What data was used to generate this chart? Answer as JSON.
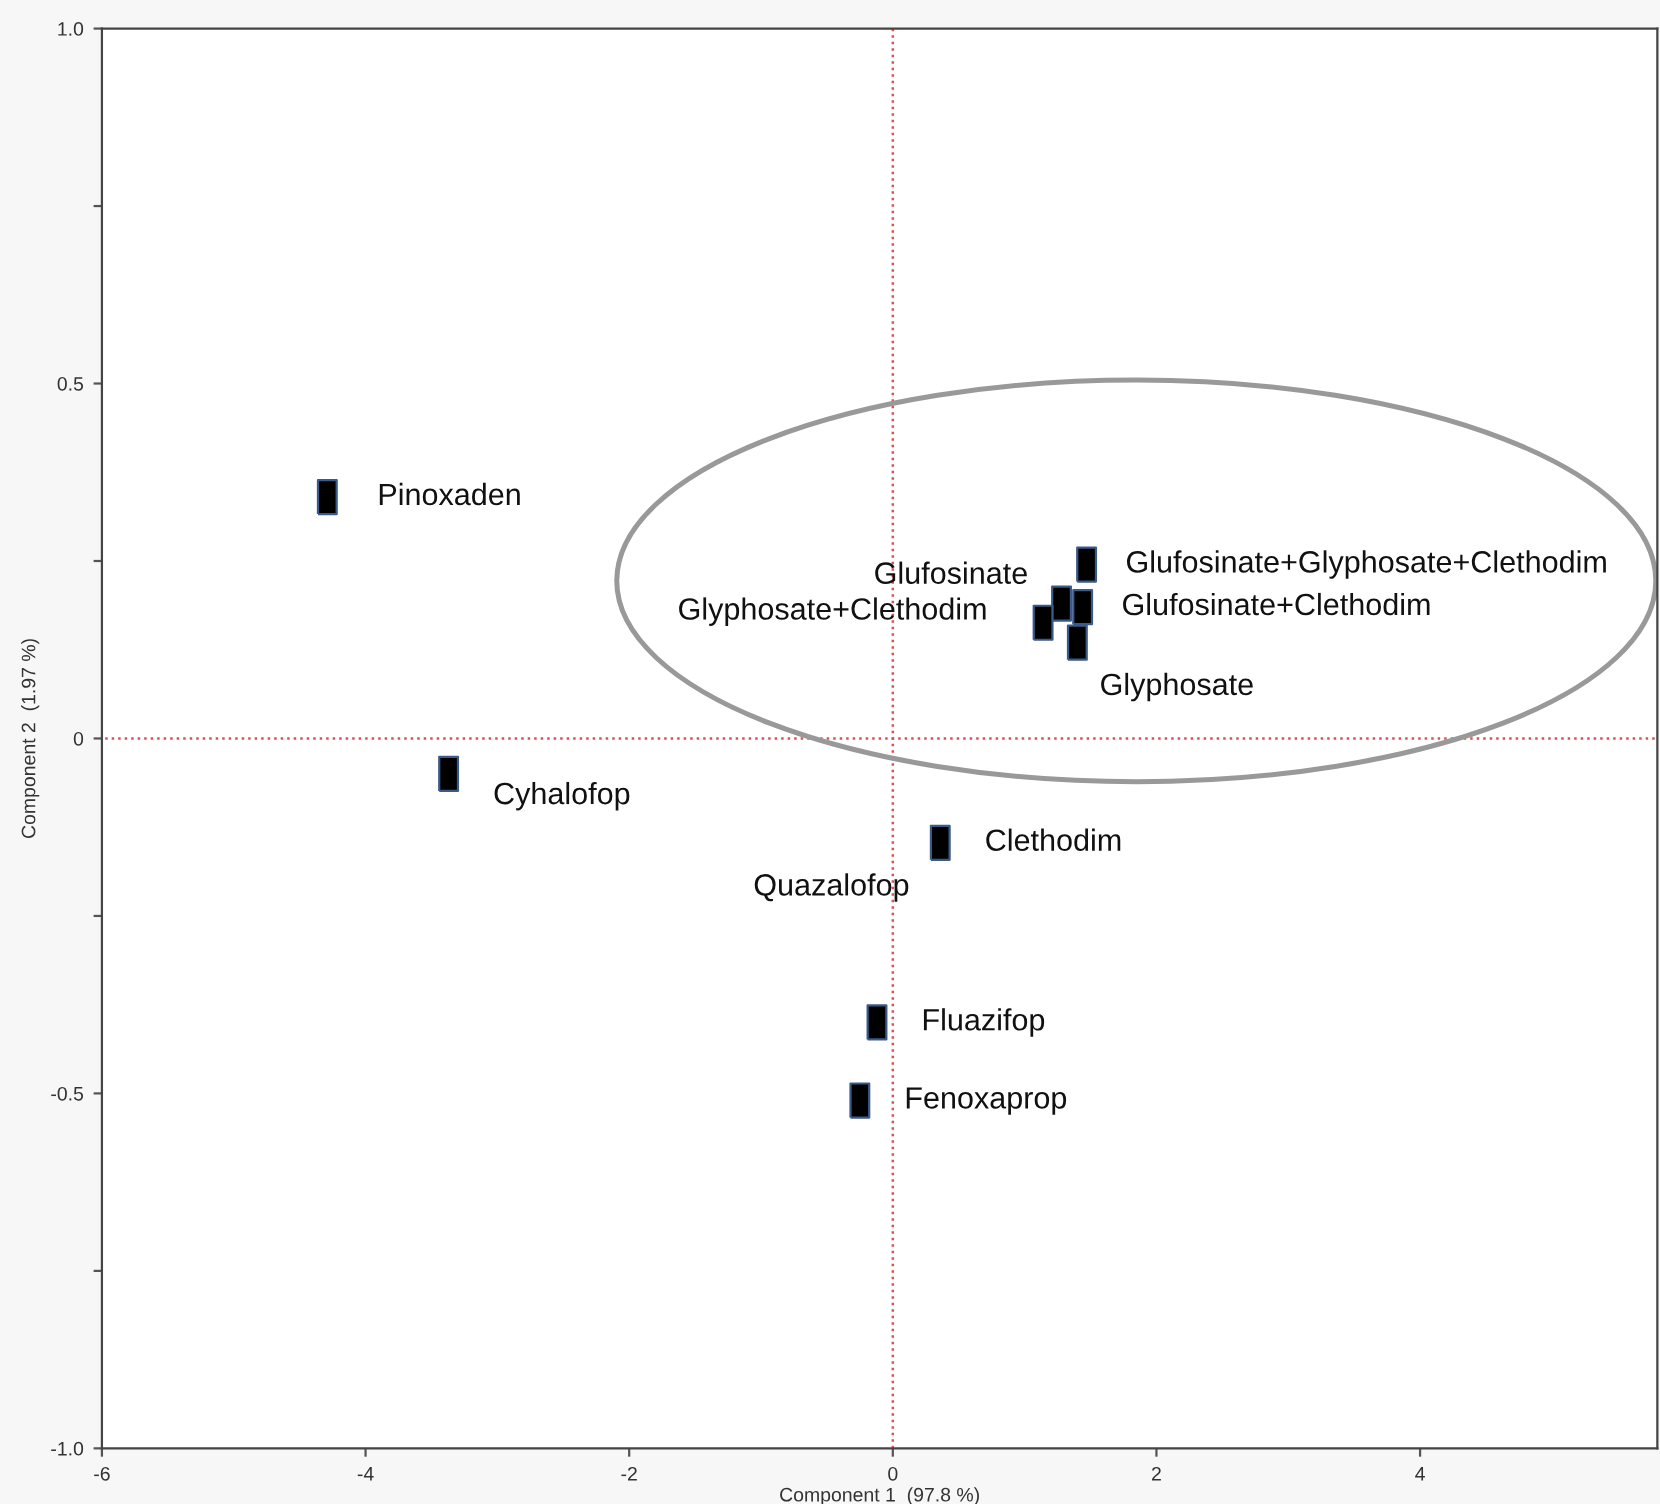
{
  "chart_data": {
    "type": "scatter",
    "xlabel": "Component 1  (97.8 %)",
    "ylabel": "Component 2  (1.97 %)",
    "series": [
      {
        "color": "#000000",
        "x": [
          -4.29,
          -3.37,
          0.36,
          -0.12,
          -0.25,
          1.47,
          1.28,
          1.44,
          1.14,
          1.4
        ],
        "values": [
          0.34,
          -0.05,
          -0.147,
          -0.4,
          -0.51,
          0.245,
          0.19,
          0.185,
          0.163,
          0.135
        ],
        "value_labels": [
          "Pinoxaden",
          "Cyhalofop",
          "Clethodim",
          "Fluazifop",
          "Fenoxaprop",
          "Glufosinate+Glyphosate+Clethodim",
          "Glufosinate",
          "Glufosinate+Clethodim",
          "Glyphosate+Clethodim",
          "Glyphosate"
        ]
      }
    ],
    "annotations": [
      "Quazalofop"
    ],
    "xlim": [
      -6,
      5.8
    ],
    "ylim": [
      -1,
      1
    ],
    "xticks": [
      -6,
      -4,
      -2,
      0,
      2,
      4
    ],
    "yticks": [
      {
        "value": -1,
        "label": "-1.0"
      },
      {
        "value": -0.75,
        "label": null
      },
      {
        "value": -0.5,
        "label": "-0.5"
      },
      {
        "value": -0.25,
        "label": null
      },
      0,
      {
        "value": 0.25,
        "label": null
      },
      {
        "value": 0.5,
        "label": "0.5"
      },
      {
        "value": 0.75,
        "label": null
      },
      {
        "value": 1,
        "label": "1.0"
      }
    ],
    "ref_lines": [
      {
        "axis": "x",
        "value": 0,
        "color": "#e05050",
        "line_style": "dotted"
      },
      {
        "axis": "y",
        "value": 0,
        "color": "#e05050",
        "line_style": "dotted"
      }
    ],
    "marker": "square",
    "grid": false,
    "legend": false
  }
}
